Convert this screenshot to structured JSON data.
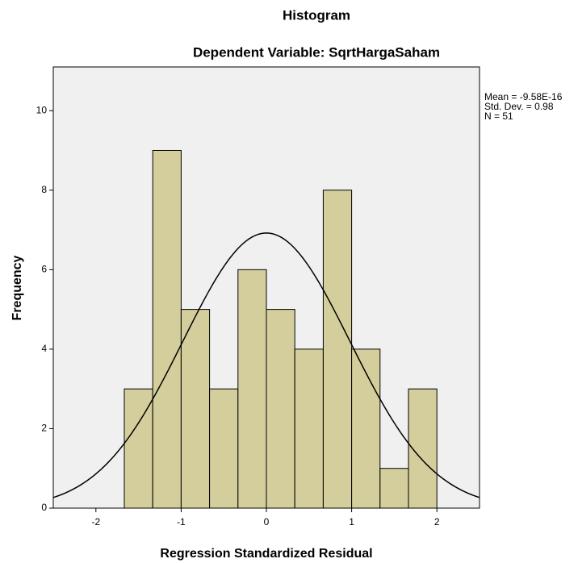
{
  "chart_data": {
    "type": "histogram",
    "title": "Histogram",
    "subtitle": "Dependent Variable: SqrtHargaSaham",
    "x_label": "Regression Standardized Residual",
    "y_label": "Frequency",
    "bins": [
      -1.6667,
      -1.3333,
      -1.0,
      -0.6667,
      -0.3333,
      0.0,
      0.3333,
      0.6667,
      1.0,
      1.3333,
      1.6667,
      2.0
    ],
    "values": [
      3,
      9,
      5,
      3,
      6,
      5,
      4,
      8,
      4,
      1,
      3
    ],
    "color": "#d3ce9c",
    "xlim": [
      -2.5,
      2.5
    ],
    "xticks": [
      -2,
      -1,
      0,
      1,
      2
    ],
    "ylim": [
      0,
      11.1
    ],
    "yticks": [
      0,
      2,
      4,
      6,
      8,
      10
    ],
    "stats": [
      {
        "value": -9.58e-16,
        "label": "Mean = -9.58E-16"
      },
      {
        "value": 0.98,
        "label": "Std. Dev. = 0.98"
      },
      {
        "value": 51,
        "label": "N = 51"
      }
    ]
  }
}
